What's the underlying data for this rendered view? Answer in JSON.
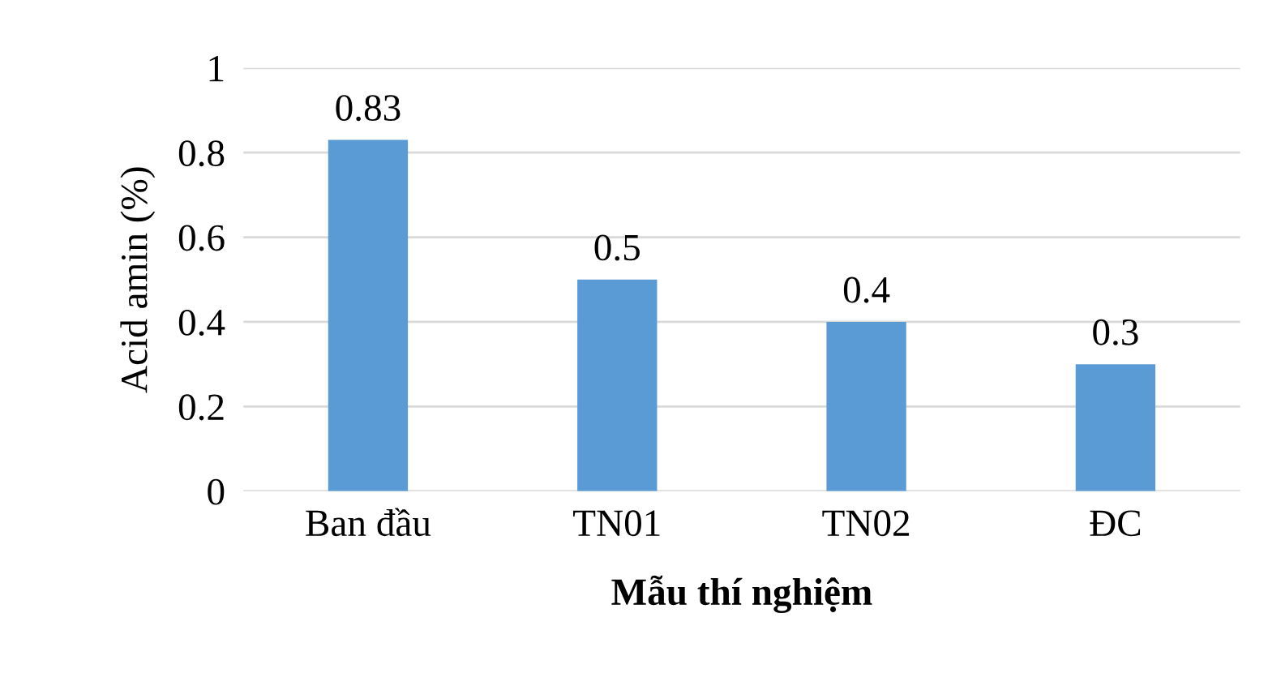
{
  "chart_data": {
    "type": "bar",
    "xlabel": "Mẫu thí nghiệm",
    "ylabel": "Acid amin (%)",
    "categories": [
      "Ban đầu",
      "TN01",
      "TN02",
      "ĐC"
    ],
    "values": [
      0.83,
      0.5,
      0.4,
      0.3
    ],
    "color": "#5b9bd5",
    "ylim": [
      0,
      1
    ],
    "yticks": [
      0,
      0.2,
      0.4,
      0.6,
      0.8,
      1
    ],
    "grid": "y",
    "data_labels": true
  }
}
